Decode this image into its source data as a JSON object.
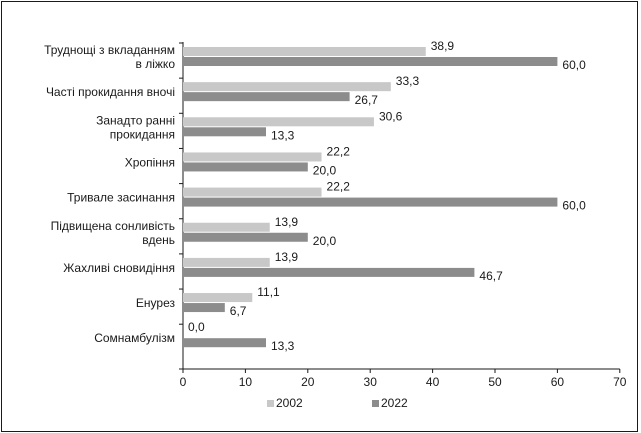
{
  "chart_data": {
    "type": "bar",
    "orientation": "horizontal",
    "categories": [
      [
        "Труднощі з вкладанням",
        "в ліжко"
      ],
      [
        "Часті прокидання вночі"
      ],
      [
        "Занадто ранні",
        "прокидання"
      ],
      [
        "Хропіння"
      ],
      [
        "Тривале засинання"
      ],
      [
        "Підвищена сонливість",
        "вдень"
      ],
      [
        "Жахливі сновидіння"
      ],
      [
        "Енурез"
      ],
      [
        "Сомнамбулізм"
      ]
    ],
    "series": [
      {
        "name": "2002",
        "color": "#c8c8c8",
        "values": [
          38.9,
          33.3,
          30.6,
          22.2,
          22.2,
          13.9,
          13.9,
          11.1,
          0.0
        ],
        "labels": [
          "38,9",
          "33,3",
          "30,6",
          "22,2",
          "22,2",
          "13,9",
          "13,9",
          "11,1",
          "0,0"
        ]
      },
      {
        "name": "2022",
        "color": "#8c8c8c",
        "values": [
          60.0,
          26.7,
          13.3,
          20.0,
          60.0,
          20.0,
          46.7,
          6.7,
          13.3
        ],
        "labels": [
          "60,0",
          "26,7",
          "13,3",
          "20,0",
          "60,0",
          "20,0",
          "46,7",
          "6,7",
          "13,3"
        ]
      }
    ],
    "xlim": [
      0,
      70
    ],
    "xticks": [
      0,
      10,
      20,
      30,
      40,
      50,
      60,
      70
    ],
    "title": "",
    "xlabel": "",
    "ylabel": "",
    "grid": false,
    "legend": "bottom"
  }
}
